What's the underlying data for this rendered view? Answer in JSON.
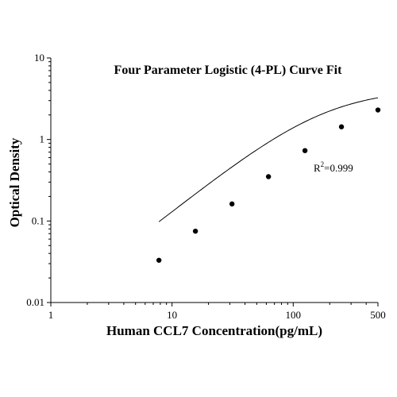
{
  "chart_data": {
    "type": "scatter",
    "title": "Four Parameter Logistic (4-PL) Curve Fit",
    "xlabel": "Human CCL7 Concentration(pg/mL)",
    "ylabel": "Optical Density",
    "x_scale": "log",
    "y_scale": "log",
    "xlim": [
      1,
      500
    ],
    "ylim": [
      0.01,
      10
    ],
    "x_ticks": [
      1,
      10,
      100,
      500
    ],
    "x_tick_labels": [
      "1",
      "10",
      "100",
      "500"
    ],
    "y_ticks": [
      0.01,
      0.1,
      1,
      10
    ],
    "y_tick_labels": [
      "0.01",
      "0.1",
      "1",
      "10"
    ],
    "grid": false,
    "series": [
      {
        "x": [
          7.8,
          15.6,
          31.25,
          62.5,
          125,
          250,
          500
        ],
        "y": [
          0.033,
          0.075,
          0.162,
          0.35,
          0.73,
          1.43,
          2.3
        ]
      }
    ],
    "fit": {
      "type": "4-PL",
      "A": 0.003,
      "B": 1.2,
      "C": 180,
      "D": 4.2,
      "xrange": [
        7.8,
        500
      ]
    },
    "annotation": {
      "base": "R",
      "superscript": "2",
      "value": "=0.999"
    },
    "colors": {
      "points": "#000000",
      "curve": "#000000",
      "axes": "#000000"
    }
  }
}
